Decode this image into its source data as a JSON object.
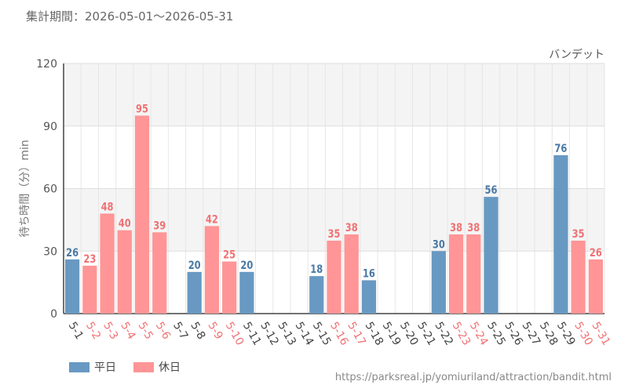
{
  "header": {
    "period": "集計期間：2026-05-01～2026-05-31"
  },
  "source_url": "https://parksreal.jp/yomiuriland/attraction/bandit.html",
  "colors": {
    "weekday": "#6899c2",
    "holiday": "#ff9596",
    "weekday_label": "#4a79a5",
    "holiday_label": "#f07274",
    "tick_weekday": "#444444",
    "tick_holiday": "#f07274"
  },
  "chart_data": {
    "type": "bar",
    "title": "バンデット",
    "ylabel": "待ち時間（分）min",
    "xlabel": "",
    "ylim": [
      0,
      120
    ],
    "yticks": [
      0,
      30,
      60,
      90,
      120
    ],
    "grid": true,
    "legend": "bottom-left",
    "categories": [
      "5-1",
      "5-2",
      "5-3",
      "5-4",
      "5-5",
      "5-6",
      "5-7",
      "5-8",
      "5-9",
      "5-10",
      "5-11",
      "5-12",
      "5-13",
      "5-14",
      "5-15",
      "5-16",
      "5-17",
      "5-18",
      "5-19",
      "5-20",
      "5-21",
      "5-22",
      "5-23",
      "5-24",
      "5-25",
      "5-26",
      "5-27",
      "5-28",
      "5-29",
      "5-30",
      "5-31"
    ],
    "day_type": [
      "weekday",
      "holiday",
      "holiday",
      "holiday",
      "holiday",
      "holiday",
      "weekday",
      "weekday",
      "holiday",
      "holiday",
      "weekday",
      "weekday",
      "weekday",
      "weekday",
      "weekday",
      "holiday",
      "holiday",
      "weekday",
      "weekday",
      "weekday",
      "weekday",
      "weekday",
      "holiday",
      "holiday",
      "weekday",
      "weekday",
      "weekday",
      "weekday",
      "weekday",
      "holiday",
      "holiday"
    ],
    "values": [
      26,
      23,
      48,
      40,
      95,
      39,
      null,
      20,
      42,
      25,
      20,
      null,
      null,
      null,
      18,
      35,
      38,
      16,
      null,
      null,
      null,
      30,
      38,
      38,
      56,
      null,
      null,
      null,
      76,
      35,
      26
    ],
    "series": [
      {
        "name": "平日",
        "key": "weekday"
      },
      {
        "name": "休日",
        "key": "holiday"
      }
    ]
  }
}
